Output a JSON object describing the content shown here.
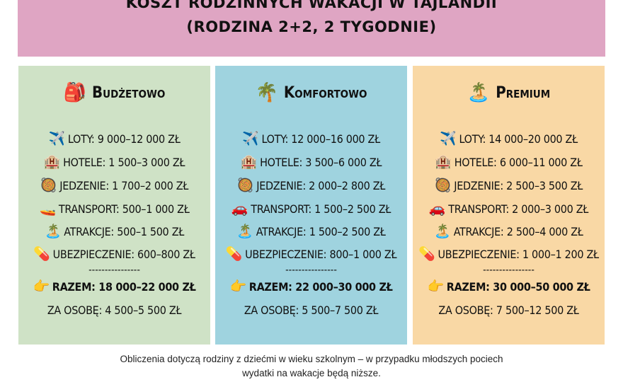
{
  "header": {
    "line1": "KOSZT RODZINNYCH WAKACJI W TAJLANDII",
    "line2": "(RODZINA 2+2, 2 TYGODNIE)"
  },
  "cards": [
    {
      "title": "Budżetowo",
      "title_icon": "🎒",
      "rows": [
        {
          "icon": "✈️",
          "text": "LOTY: 9 000–12 000 ZŁ"
        },
        {
          "icon": "🏨",
          "text": "HOTELE: 1 500–3 000 ZŁ"
        },
        {
          "icon": "🥘",
          "text": "JEDZENIE: 1 700–2 000 ZŁ"
        },
        {
          "icon": "🚤",
          "text": "TRANSPORT: 500–1 000 ZŁ"
        },
        {
          "icon": "🏝️",
          "text": "ATRAKCJE: 500–1 500 ZŁ"
        },
        {
          "icon": "💊",
          "text": "UBEZPIECZENIE: 600–800 ZŁ"
        }
      ],
      "separator": "----------------",
      "total_icon": "👉",
      "total": "RAZEM: 18 000–22 000 ZŁ",
      "per_person": "ZA OSOBĘ: 4 500–5 500 ZŁ"
    },
    {
      "title": "Komfortowo",
      "title_icon": "🌴",
      "rows": [
        {
          "icon": "✈️",
          "text": "LOTY: 12 000–16 000 ZŁ"
        },
        {
          "icon": "🏨",
          "text": "HOTELE: 3 500–6 000 ZŁ"
        },
        {
          "icon": "🥘",
          "text": "JEDZENIE: 2 000–2 800 ZŁ"
        },
        {
          "icon": "🚗",
          "text": "TRANSPORT: 1 500–2 500 ZŁ"
        },
        {
          "icon": "🏝️",
          "text": "ATRAKCJE: 1 500–2 500 ZŁ"
        },
        {
          "icon": "💊",
          "text": "UBEZPIECZENIE: 800–1 000 ZŁ"
        }
      ],
      "separator": "----------------",
      "total_icon": "👉",
      "total": "RAZEM: 22 000–30 000 ZŁ",
      "per_person": "ZA OSOBĘ: 5 500–7 500 ZŁ"
    },
    {
      "title": "Premium",
      "title_icon": "🏝️",
      "rows": [
        {
          "icon": "✈️",
          "text": "LOTY: 14 000–20 000 ZŁ"
        },
        {
          "icon": "🏨",
          "text": "HOTELE: 6 000–11 000 ZŁ"
        },
        {
          "icon": "🥘",
          "text": "JEDZENIE: 2 500–3 500 ZŁ"
        },
        {
          "icon": "🚗",
          "text": "TRANSPORT: 2 000–3 000 ZŁ"
        },
        {
          "icon": "🏝️",
          "text": "ATRAKCJE: 2 500–4 000 ZŁ"
        },
        {
          "icon": "💊",
          "text": "UBEZPIECZENIE: 1 000–1 200 ZŁ"
        }
      ],
      "separator": "----------------",
      "total_icon": "👉",
      "total": "RAZEM: 30 000–50 000 ZŁ",
      "per_person": "ZA OSOBĘ: 7 500–12 500 ZŁ"
    }
  ],
  "footer": {
    "line1": "Obliczenia dotyczą rodziny z dziećmi w wieku szkolnym – w przypadku młodszych pociech",
    "line2": "wydatki na wakacje będą niższe."
  },
  "colors": {
    "header": "#dfa5c3",
    "budget": "#cfe2c6",
    "comfort": "#9fd3df",
    "premium": "#f9d8a5"
  }
}
